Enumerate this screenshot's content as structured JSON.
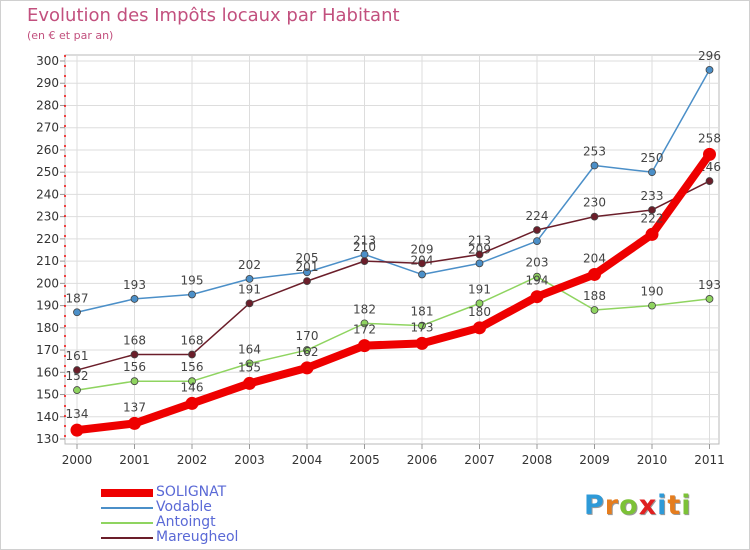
{
  "title": "Evolution des Impôts locaux par Habitant",
  "subtitle": "(en € et par an)",
  "chart_data": {
    "type": "line",
    "title": "Evolution des Impôts locaux par Habitant",
    "subtitle": "(en € et par an)",
    "xlabel": "",
    "ylabel": "",
    "categories": [
      "2000",
      "2001",
      "2002",
      "2003",
      "2004",
      "2005",
      "2006",
      "2007",
      "2008",
      "2009",
      "2010",
      "2011"
    ],
    "y_ticks": [
      130,
      140,
      150,
      160,
      170,
      180,
      190,
      200,
      210,
      220,
      230,
      240,
      250,
      260,
      270,
      280,
      290,
      300
    ],
    "ylim": [
      130,
      300
    ],
    "grid": true,
    "legend_position": "bottom-left",
    "series": [
      {
        "name": "Vodable",
        "color": "#4b8fc8",
        "values": [
          187,
          193,
          195,
          202,
          205,
          213,
          204,
          209,
          219,
          253,
          250,
          296
        ],
        "labels": [
          "187",
          "193",
          "195",
          "202",
          "205",
          "213",
          "204",
          "209",
          "",
          "253",
          "250",
          "296"
        ]
      },
      {
        "name": "Antoingt",
        "color": "#8fd460",
        "values": [
          152,
          156,
          156,
          164,
          170,
          182,
          181,
          191,
          203,
          188,
          190,
          193
        ],
        "labels": [
          "152",
          "156",
          "156",
          "164",
          "170",
          "182",
          "181",
          "191",
          "203",
          "188",
          "190",
          "193"
        ]
      },
      {
        "name": "Mareugheol",
        "color": "#6b1e2a",
        "values": [
          161,
          168,
          168,
          191,
          201,
          210,
          209,
          213,
          224,
          230,
          233,
          246
        ],
        "labels": [
          "161",
          "168",
          "168",
          "191",
          "201",
          "210",
          "209",
          "213",
          "224",
          "230",
          "233",
          "246"
        ]
      },
      {
        "name": "SOLIGNAT",
        "color": "#ee0000",
        "values": [
          134,
          137,
          146,
          155,
          162,
          172,
          173,
          180,
          194,
          204,
          222,
          258
        ],
        "labels": [
          "134",
          "137",
          "146",
          "155",
          "162",
          "172",
          "173",
          "180",
          "194",
          "204",
          "222",
          "258"
        ]
      }
    ]
  },
  "legend": [
    {
      "name": "SOLIGNAT",
      "color": "#ee0000"
    },
    {
      "name": "Vodable",
      "color": "#4b8fc8"
    },
    {
      "name": "Antoingt",
      "color": "#8fd460"
    },
    {
      "name": "Mareugheol",
      "color": "#6b1e2a"
    }
  ],
  "logo": {
    "text": "Proxiti",
    "letters": [
      "P",
      "r",
      "o",
      "x",
      "i",
      "t",
      "i"
    ],
    "letter_colors": [
      "#2e9ad8",
      "#e57d1e",
      "#7cc237",
      "#e02020",
      "#2e9ad8",
      "#e57d1e",
      "#7cc237"
    ]
  }
}
